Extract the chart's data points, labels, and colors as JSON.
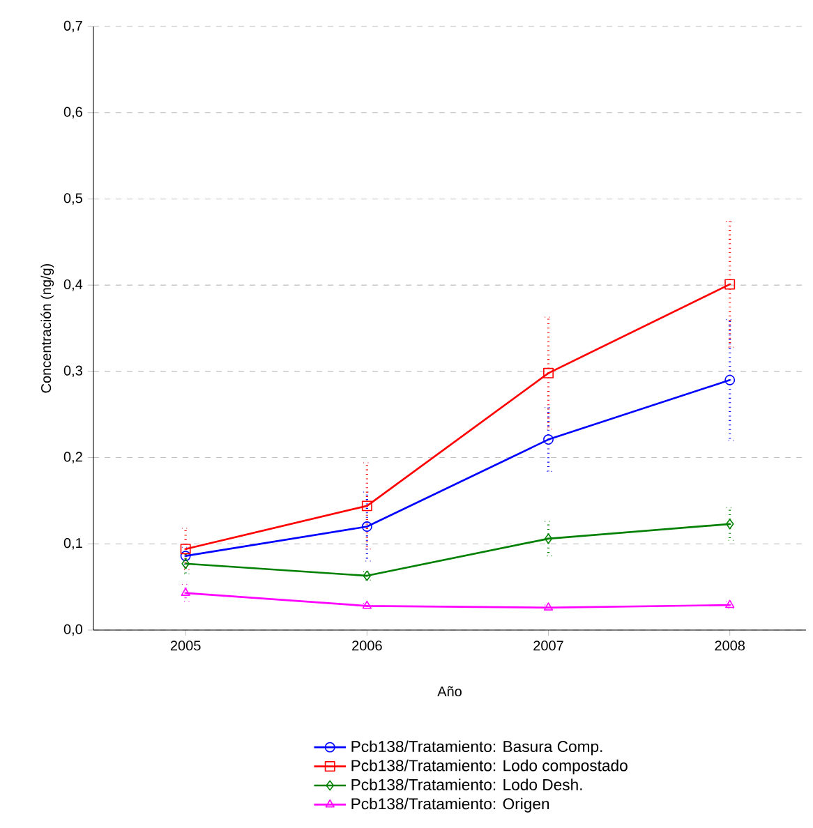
{
  "chart_data": {
    "type": "line",
    "xlabel": "Año",
    "ylabel": "Concentración (ng/g)",
    "categories": [
      "2005",
      "2006",
      "2007",
      "2008"
    ],
    "ylim": [
      0,
      0.7
    ],
    "yticks": [
      {
        "value": 0,
        "label": "0,0"
      },
      {
        "value": 0.1,
        "label": "0,1"
      },
      {
        "value": 0.2,
        "label": "0,2"
      },
      {
        "value": 0.3,
        "label": "0,3"
      },
      {
        "value": 0.4,
        "label": "0,4"
      },
      {
        "value": 0.5,
        "label": "0,5"
      },
      {
        "value": 0.6,
        "label": "0,6"
      },
      {
        "value": 0.7,
        "label": "0,7"
      }
    ],
    "grid": "y",
    "legend": "bottom",
    "line_style": "solid",
    "series": [
      {
        "name": "Pcb138/Tratamiento: Basura Comp.",
        "color": "#0000ff",
        "marker": "circle",
        "values": [
          0.086,
          0.12,
          0.221,
          0.29
        ],
        "errors": [
          0.01,
          0.04,
          0.037,
          0.07
        ]
      },
      {
        "name": "Pcb138/Tratamiento: Lodo compostado",
        "color": "#ff0000",
        "marker": "square",
        "values": [
          0.094,
          0.144,
          0.298,
          0.401
        ],
        "errors": [
          0.024,
          0.05,
          0.065,
          0.073
        ]
      },
      {
        "name": "Pcb138/Tratamiento: Lodo Desh.",
        "color": "#008000",
        "marker": "diamond",
        "values": [
          0.077,
          0.063,
          0.106,
          0.123
        ],
        "errors": [
          0.012,
          0.005,
          0.02,
          0.019
        ]
      },
      {
        "name": "Pcb138/Tratamiento: Origen",
        "color": "#ff00ff",
        "marker": "triangle",
        "values": [
          0.043,
          0.028,
          0.026,
          0.029
        ],
        "errors": [
          0.01,
          0.003,
          0.003,
          0.004
        ]
      }
    ]
  }
}
